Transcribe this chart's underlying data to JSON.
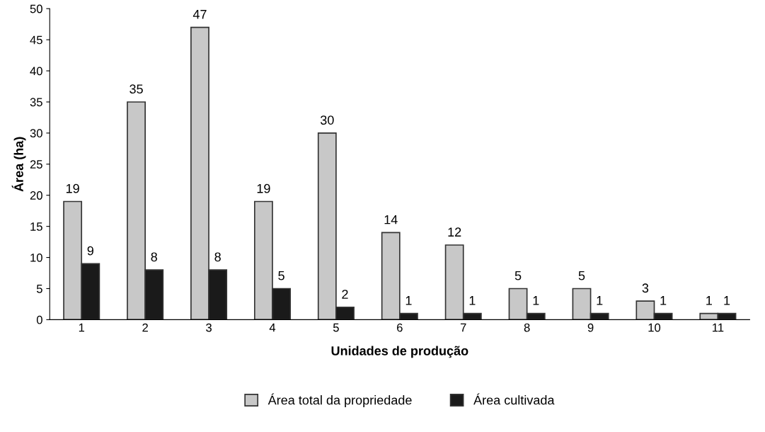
{
  "chart_data": {
    "type": "bar",
    "xlabel": "Unidades de produção",
    "ylabel": "Área (ha)",
    "categories": [
      "1",
      "2",
      "3",
      "4",
      "5",
      "6",
      "7",
      "8",
      "9",
      "10",
      "11"
    ],
    "series": [
      {
        "name": "Área total da propriedade",
        "color": "#c8c8c8",
        "values": [
          19,
          35,
          47,
          19,
          30,
          14,
          12,
          5,
          5,
          3,
          1
        ]
      },
      {
        "name": "Área cultivada",
        "color": "#1a1a1a",
        "values": [
          9,
          8,
          8,
          5,
          2,
          1,
          1,
          1,
          1,
          1,
          1
        ]
      }
    ],
    "ylim": [
      0,
      50
    ],
    "yticks": [
      0,
      5,
      10,
      15,
      20,
      25,
      30,
      35,
      40,
      45,
      50
    ],
    "data_labels": true,
    "legend": "bottom",
    "grid": false
  }
}
